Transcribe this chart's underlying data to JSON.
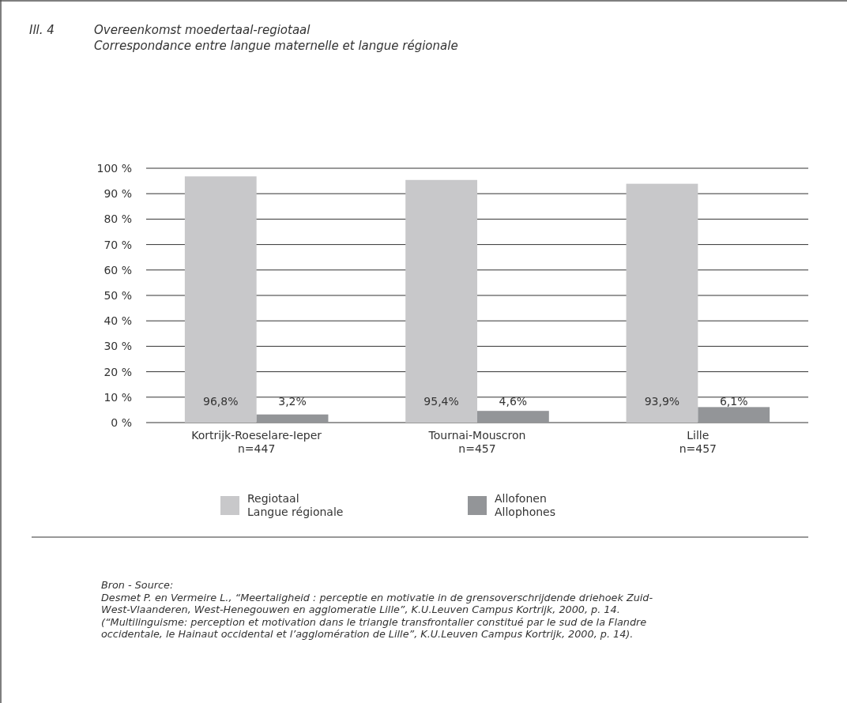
{
  "chart_data": {
    "type": "bar",
    "title": "Ill. 4\tOvereenkomst moedertaal-regiotaal",
    "subtitle": "Correspondance entre langue maternelle et langue régionale",
    "categories": [
      "Kortrijk-Roeselare-Ieper\nn=447",
      "Tournai-Mouscron\nn=457",
      "Lille\nn=457"
    ],
    "series": [
      {
        "name": "Regiotaal\nLangue régionale",
        "color": "#c8c8ca",
        "values": [
          96.8,
          95.4,
          93.9
        ],
        "value_labels": [
          "96,8%",
          "95,4%",
          "93,9%"
        ]
      },
      {
        "name": "Allofonen\nAllophones",
        "color": "#939598",
        "values": [
          3.2,
          4.6,
          6.1
        ],
        "value_labels": [
          "3,2%",
          "4,6%",
          "6,1%"
        ]
      }
    ],
    "ylim": [
      0,
      100
    ],
    "yticks": [
      {
        "value": 0,
        "label": "0 %"
      },
      {
        "value": 10,
        "label": "10 %"
      },
      {
        "value": 20,
        "label": "20 %"
      },
      {
        "value": 30,
        "label": "30 %"
      },
      {
        "value": 40,
        "label": "40 %"
      },
      {
        "value": 50,
        "label": "50 %"
      },
      {
        "value": 60,
        "label": "60 %"
      },
      {
        "value": 70,
        "label": "70 %"
      },
      {
        "value": 80,
        "label": "80 %"
      },
      {
        "value": 90,
        "label": "90 %"
      },
      {
        "value": 100,
        "label": "100 %"
      }
    ],
    "grid": "y",
    "legend": "bottom",
    "annotations": [
      "Bron - Source:",
      "Desmet P. en Vermeire L., “Meertaligheid : perceptie en motivatie in de grensoverschrijdende driehoek Zuid-",
      "West-Vlaanderen, West-Henegouwen en agglomeratie Lille”, K.U.Leuven Campus Kortrijk, 2000, p. 14.",
      "(“Multilinguisme: perception et motivation dans le triangle transfrontalier constitué par le sud de la Flandre",
      "occidentale, le Hainaut occidental et l’agglomération de Lille”, K.U.Leuven Campus Kortrijk, 2000, p. 14)."
    ]
  }
}
